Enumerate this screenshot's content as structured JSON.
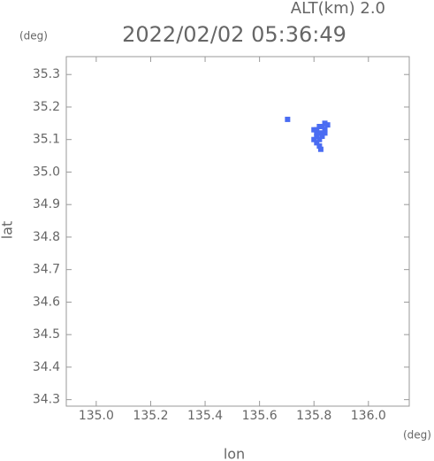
{
  "chart_data": {
    "type": "scatter",
    "title": "2022/02/02 05:36:49",
    "subtitle": "ALT(km) 2.0",
    "x_unit": "(deg)",
    "y_unit": "(deg)",
    "xlabel": "lon",
    "ylabel": "lat",
    "color": "#4a6cf2",
    "x": [
      135.703,
      135.8,
      135.81,
      135.82,
      135.83,
      135.84,
      135.85,
      135.81,
      135.82,
      135.83,
      135.84,
      135.81,
      135.82,
      135.83,
      135.81,
      135.82,
      135.825,
      135.8,
      135.84
    ],
    "values": [
      35.162,
      35.13,
      35.13,
      35.14,
      35.14,
      35.15,
      35.145,
      35.12,
      35.12,
      35.12,
      35.13,
      35.11,
      35.1,
      35.11,
      35.09,
      35.08,
      35.07,
      35.1,
      35.12
    ],
    "xlim": [
      134.89,
      136.15
    ],
    "ylim": [
      34.28,
      35.355
    ],
    "xticks": [
      {
        "value": 135,
        "label": "135.0"
      },
      135.2,
      135.4,
      135.6,
      135.8,
      {
        "value": 136,
        "label": "136.0"
      }
    ],
    "yticks": [
      34.3,
      34.4,
      34.5,
      34.6,
      34.7,
      34.8,
      34.9,
      {
        "value": 35,
        "label": "35.0"
      },
      35.1,
      35.2,
      35.3
    ]
  }
}
